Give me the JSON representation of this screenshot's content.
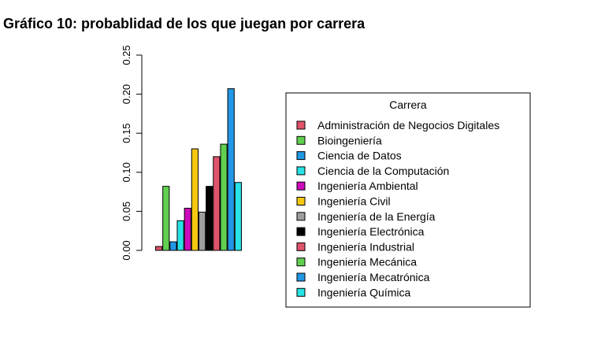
{
  "chart_data": {
    "type": "bar",
    "title": "Gráfico 10: probablidad de los que juegan por carrera",
    "xlabel": "",
    "ylabel": "",
    "ylim": [
      0,
      0.25
    ],
    "yticks": [
      "0.00",
      "0.05",
      "0.10",
      "0.15",
      "0.20",
      "0.25"
    ],
    "grid": false,
    "legend": {
      "title": "Carrera",
      "placement": "right"
    },
    "categories": [
      "Administración de Negocios Digitales",
      "Bioingeniería",
      "Ciencia de Datos",
      "Ciencia de la Computación",
      "Ingeniería Ambiental",
      "Ingeniería Civil",
      "Ingeniería de la Energía",
      "Ingeniería Electrónica",
      "Ingeniería Industrial",
      "Ingeniería Mecánica",
      "Ingeniería Mecatrónica",
      "Ingeniería Química"
    ],
    "values": [
      0.005,
      0.082,
      0.011,
      0.038,
      0.054,
      0.13,
      0.049,
      0.082,
      0.12,
      0.136,
      0.207,
      0.087
    ],
    "colors": [
      "#DF536B",
      "#61D04F",
      "#2297E6",
      "#28E2E5",
      "#CD0BBC",
      "#F5C710",
      "#9E9E9E",
      "#000000",
      "#DF536B",
      "#61D04F",
      "#2297E6",
      "#28E2E5"
    ]
  }
}
